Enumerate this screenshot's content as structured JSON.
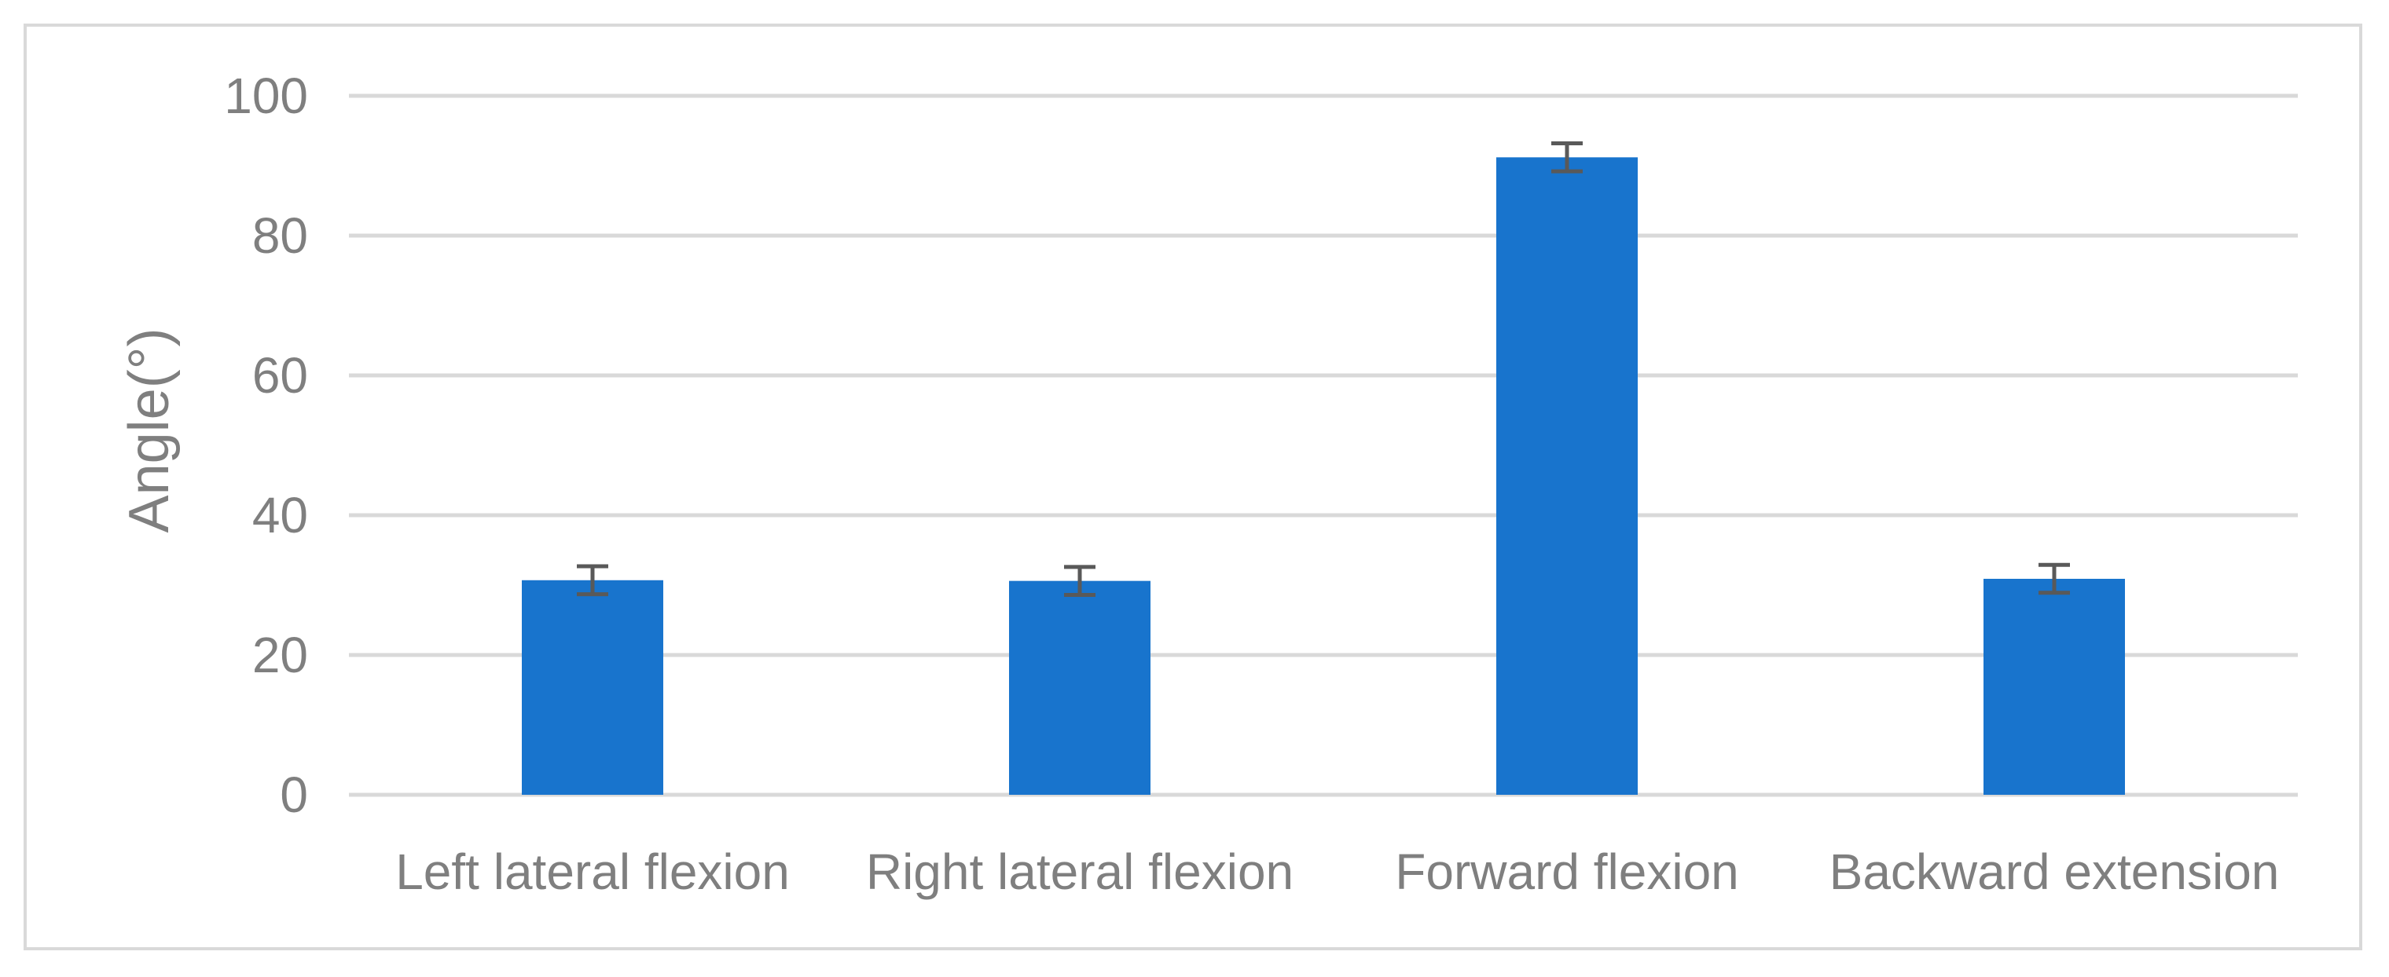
{
  "chart_data": {
    "type": "bar",
    "title": "",
    "xlabel": "",
    "ylabel": "Angle(°)",
    "ylim": [
      0,
      100
    ],
    "yticks": [
      0,
      20,
      40,
      60,
      80,
      100
    ],
    "grid": true,
    "categories": [
      "Left lateral flexion",
      "Right lateral flexion",
      "Forward flexion",
      "Backward extension"
    ],
    "values": [
      30.7,
      30.6,
      91.2,
      30.9
    ],
    "errors": [
      2.0,
      2.0,
      2.0,
      2.0
    ]
  },
  "colors": {
    "bar": "#1874cd",
    "error_bar": "#595959",
    "grid": "#d9d9d9",
    "text": "#7f7f7f",
    "frame": "#d9d9d9"
  }
}
